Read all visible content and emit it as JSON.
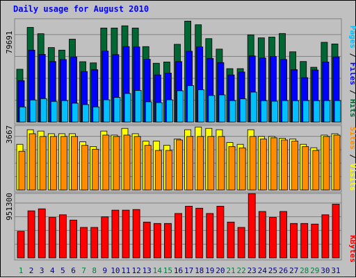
{
  "title": "Daily usage for August 2010",
  "colors": {
    "background": "#c0c0c0",
    "title": "#0000ff",
    "hits": "#006633",
    "files": "#0000ff",
    "pages": "#00c0ff",
    "visits": "#ffff00",
    "sites": "#ff8c00",
    "kbytes": "#ff0000",
    "weekend": "#008040",
    "weekday": "#000080"
  },
  "side_labels": {
    "panel1": [
      "Pages",
      "Files",
      "Hits"
    ],
    "panel2": [
      "Sites",
      "Visits"
    ],
    "panel3": [
      "KBytes"
    ]
  },
  "chart_data": [
    {
      "type": "bar",
      "panel": "hits-files-pages",
      "ymax_label": "79691",
      "ylim": [
        0,
        79691
      ],
      "categories": [
        "1",
        "2",
        "3",
        "4",
        "5",
        "6",
        "7",
        "8",
        "9",
        "10",
        "11",
        "12",
        "13",
        "14",
        "15",
        "16",
        "17",
        "18",
        "19",
        "20",
        "21",
        "22",
        "23",
        "24",
        "25",
        "26",
        "27",
        "28",
        "29",
        "30",
        "31"
      ],
      "weekend_days": [
        "1",
        "7",
        "8",
        "14",
        "15",
        "21",
        "22",
        "28",
        "29"
      ],
      "series": [
        {
          "name": "Hits",
          "values": [
            41800,
            75000,
            70000,
            59000,
            57000,
            65700,
            47800,
            46900,
            74500,
            74500,
            76300,
            74500,
            59800,
            46600,
            47600,
            61600,
            80000,
            77100,
            66100,
            57800,
            42300,
            42300,
            69100,
            66700,
            67300,
            70200,
            55700,
            48000,
            43400,
            63200,
            61900
          ]
        },
        {
          "name": "Files",
          "values": [
            32800,
            57000,
            53600,
            48000,
            49500,
            51600,
            40000,
            41500,
            56200,
            53400,
            59800,
            59500,
            49700,
            37300,
            38800,
            47900,
            56100,
            59500,
            50400,
            47100,
            37300,
            39700,
            52400,
            50700,
            52000,
            49600,
            41500,
            35200,
            41200,
            47600,
            51600
          ]
        },
        {
          "name": "Pages",
          "values": [
            11900,
            17500,
            18500,
            16300,
            17000,
            14900,
            13800,
            12000,
            17600,
            19500,
            22600,
            25000,
            16000,
            15400,
            17600,
            24800,
            28800,
            25500,
            21000,
            21500,
            17000,
            18400,
            23700,
            16900,
            16500,
            17000,
            16900,
            17000,
            16900,
            17000,
            17000
          ]
        }
      ]
    },
    {
      "type": "bar",
      "panel": "visits-sites",
      "ymax_label": "3667",
      "ylim": [
        0,
        3667
      ],
      "categories": [
        "1",
        "2",
        "3",
        "4",
        "5",
        "6",
        "7",
        "8",
        "9",
        "10",
        "11",
        "12",
        "13",
        "14",
        "15",
        "16",
        "17",
        "18",
        "19",
        "20",
        "21",
        "22",
        "23",
        "24",
        "25",
        "26",
        "27",
        "28",
        "29",
        "30",
        "31"
      ],
      "series": [
        {
          "name": "Visits",
          "values": [
            2710,
            3580,
            3500,
            3340,
            3340,
            3340,
            2860,
            2580,
            3500,
            3260,
            3660,
            3340,
            2900,
            2900,
            2650,
            3030,
            3580,
            3740,
            3660,
            3580,
            2820,
            2710,
            3580,
            3180,
            3180,
            3070,
            3030,
            2710,
            2510,
            3260,
            3340
          ]
        },
        {
          "name": "Sites",
          "values": [
            2300,
            3340,
            3180,
            3180,
            3180,
            3180,
            2650,
            2420,
            3260,
            3180,
            3260,
            3180,
            2650,
            2350,
            2350,
            2970,
            3180,
            3180,
            3180,
            3180,
            2580,
            2500,
            3180,
            3030,
            3100,
            2970,
            2900,
            2580,
            2350,
            3180,
            3260
          ]
        }
      ]
    },
    {
      "type": "bar",
      "panel": "kbytes",
      "ymax_label": "951300",
      "ylim": [
        0,
        951300
      ],
      "categories": [
        "1",
        "2",
        "3",
        "4",
        "5",
        "6",
        "7",
        "8",
        "9",
        "10",
        "11",
        "12",
        "13",
        "14",
        "15",
        "16",
        "17",
        "18",
        "19",
        "20",
        "21",
        "22",
        "23",
        "24",
        "25",
        "26",
        "27",
        "28",
        "29",
        "30",
        "31"
      ],
      "series": [
        {
          "name": "KBytes",
          "values": [
            400000,
            710000,
            740000,
            610000,
            650000,
            570000,
            460000,
            460000,
            620000,
            720000,
            720000,
            730000,
            540000,
            520000,
            520000,
            670000,
            780000,
            750000,
            670000,
            780000,
            540000,
            460000,
            970000,
            700000,
            610000,
            700000,
            520000,
            520000,
            510000,
            650000,
            810000
          ]
        }
      ]
    }
  ]
}
